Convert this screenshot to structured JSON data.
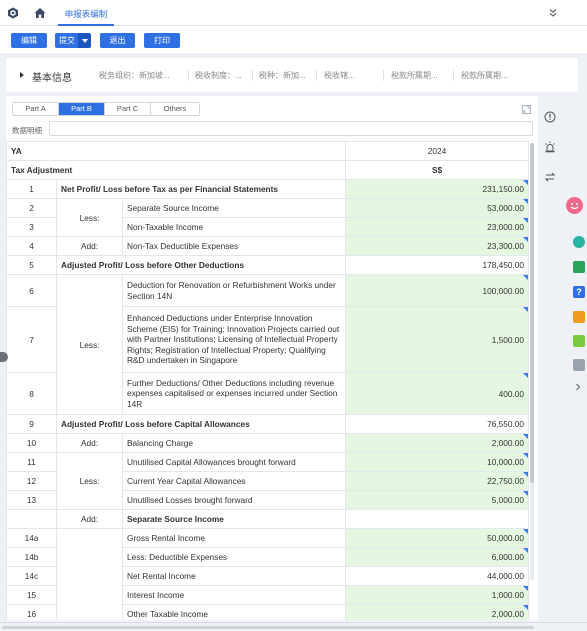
{
  "header": {
    "tab_active": "申报表编制"
  },
  "toolbar": {
    "edit": "编辑",
    "submit": "提交",
    "exit": "退出",
    "print": "打印"
  },
  "info": {
    "title": "基本信息",
    "fields": [
      "税务组织：新加坡...",
      "税收制度：...",
      "税种：新加...",
      "税收辖...",
      "税款所属期...",
      "税款所属期..."
    ]
  },
  "panel": {
    "tabs": [
      "Part A",
      "Part B",
      "Part C",
      "Others"
    ],
    "active_tab": "Part B",
    "desc_label": "数据明细"
  },
  "grid": {
    "header_col1": "YA",
    "header_year": "2024",
    "section": "Tax Adjustment",
    "currency": "S$",
    "rows": [
      {
        "no": "1",
        "group": "",
        "item": "Net Profit/ Loss before Tax as per Financial Statements",
        "value": "231,150.00"
      },
      {
        "no": "2",
        "group": "Less:",
        "item": "Separate Source Income",
        "value": "53,000.00"
      },
      {
        "no": "3",
        "group": "",
        "item": "Non-Taxable Income",
        "value": "23,000.00"
      },
      {
        "no": "4",
        "group": "Add:",
        "item": "Non-Tax Deductible Expenses",
        "value": "23,300.00"
      },
      {
        "no": "5",
        "group": "",
        "item": "Adjusted Profit/ Loss before Other Deductions",
        "value": "178,450.00"
      },
      {
        "no": "6",
        "group": "",
        "item": "Deduction for Renovation or Refurbishment Works under Section 14N",
        "value": "100,000.00"
      },
      {
        "no": "7",
        "group": "Less:",
        "item": "Enhanced Deductions under Enterprise Innovation Scheme (EIS) for Training; Innovation Projects carried out with Partner Institutions; Licensing of Intellectual Property Rights; Registration of Intellectual Property; Qualifying R&D undertaken in Singapore",
        "value": "1,500.00"
      },
      {
        "no": "8",
        "group": "",
        "item": "Further Deductions/ Other Deductions including revenue expenses capitalised or expenses incurred under Section 14R",
        "value": "400.00"
      },
      {
        "no": "9",
        "group": "",
        "item": "Adjusted Profit/ Loss before Capital Allowances",
        "value": "76,550.00"
      },
      {
        "no": "10",
        "group": "Add:",
        "item": "Balancing Charge",
        "value": "2,000.00"
      },
      {
        "no": "11",
        "group": "",
        "item": "Unutilised Capital Allowances brought forward",
        "value": "10,000.00"
      },
      {
        "no": "12",
        "group": "Less:",
        "item": "Current Year Capital Allowances",
        "value": "22,750.00"
      },
      {
        "no": "13",
        "group": "",
        "item": "Unutilised Losses brought forward",
        "value": "5,000.00"
      },
      {
        "no": "",
        "group": "Add:",
        "item": "Separate Source Income",
        "value": ""
      },
      {
        "no": "14a",
        "group": "",
        "item": "Gross Rental Income",
        "value": "50,000.00"
      },
      {
        "no": "14b",
        "group": "",
        "item": "Less: Deductible Expenses",
        "value": "6,000.00"
      },
      {
        "no": "14c",
        "group": "",
        "item": "Net Rental Income",
        "value": "44,000.00"
      },
      {
        "no": "15",
        "group": "",
        "item": "Interest Income",
        "value": "1,000.00"
      },
      {
        "no": "16",
        "group": "",
        "item": "Other Taxable Income",
        "value": "2,000.00"
      }
    ]
  }
}
